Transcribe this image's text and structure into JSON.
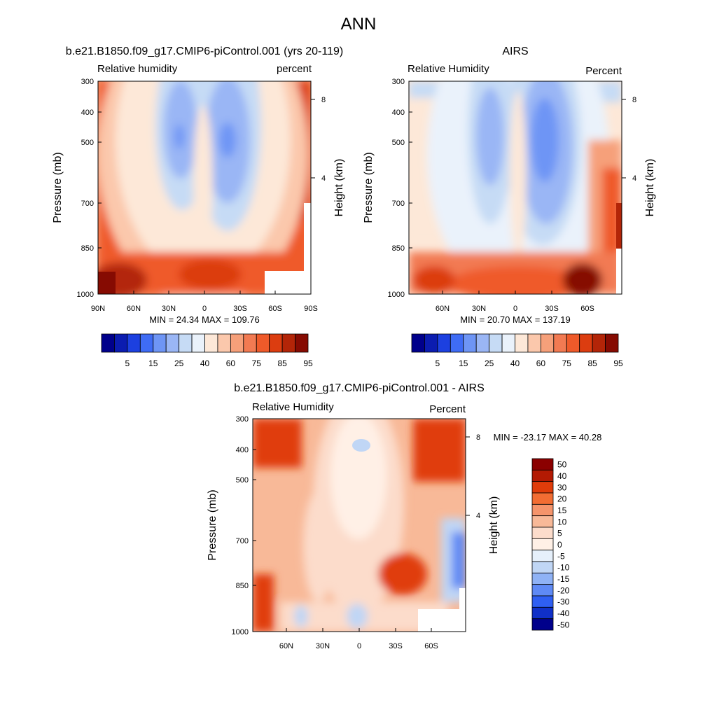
{
  "figure": {
    "main_title": "ANN"
  },
  "chart_data": [
    {
      "type": "heatmap",
      "panel": "model",
      "title": "b.e21.B1850.f09_g17.CMIP6-piControl.001 (yrs 20-119)",
      "left_label": "Relative humidity",
      "right_label": "percent",
      "ylabel": "Pressure (mb)",
      "ylabel_right": "Height (km)",
      "y_ticks": [
        "300",
        "400",
        "500",
        "700",
        "850",
        "1000"
      ],
      "y_right_ticks": [
        "8",
        "4"
      ],
      "x_ticks": [
        "90N",
        "60N",
        "30N",
        "0",
        "30S",
        "60S",
        "90S"
      ],
      "stats_text": "MIN =  24.34  MAX = 109.76",
      "min": 24.34,
      "max": 109.76,
      "colorbar_labels": [
        "5",
        "15",
        "25",
        "40",
        "60",
        "75",
        "85",
        "95"
      ]
    },
    {
      "type": "heatmap",
      "panel": "obs",
      "title": "AIRS",
      "left_label": "Relative Humidity",
      "right_label": "Percent",
      "ylabel": "Pressure (mb)",
      "ylabel_right": "Height (km)",
      "y_ticks": [
        "300",
        "400",
        "500",
        "700",
        "850",
        "1000"
      ],
      "y_right_ticks": [
        "8",
        "4"
      ],
      "x_ticks": [
        "60N",
        "30N",
        "0",
        "30S",
        "60S"
      ],
      "stats_text": "MIN =  20.70  MAX = 137.19",
      "min": 20.7,
      "max": 137.19,
      "colorbar_labels": [
        "5",
        "15",
        "25",
        "40",
        "60",
        "75",
        "85",
        "95"
      ]
    },
    {
      "type": "heatmap",
      "panel": "diff",
      "title": "b.e21.B1850.f09_g17.CMIP6-piControl.001 - AIRS",
      "left_label": "Relative Humidity",
      "right_label": "Percent",
      "ylabel": "Pressure (mb)",
      "ylabel_right": "Height (km)",
      "y_ticks": [
        "300",
        "400",
        "500",
        "700",
        "850",
        "1000"
      ],
      "y_right_ticks": [
        "8",
        "4"
      ],
      "x_ticks": [
        "60N",
        "30N",
        "0",
        "30S",
        "60S"
      ],
      "stats_text": "MIN = -23.17  MAX =  40.28",
      "min": -23.17,
      "max": 40.28,
      "colorbar_labels": [
        "50",
        "40",
        "30",
        "20",
        "15",
        "10",
        "5",
        "0",
        "-5",
        "-10",
        "-15",
        "-20",
        "-30",
        "-40",
        "-50"
      ]
    }
  ],
  "palettes": {
    "absolute": [
      "#00008b",
      "#0b1cb0",
      "#1c40e0",
      "#3f6cf5",
      "#6e95f5",
      "#9ab6f5",
      "#c6dbf5",
      "#eaf2fb",
      "#fde8d8",
      "#fbc8ac",
      "#f6a07a",
      "#f27a52",
      "#ef5a2a",
      "#dc3d10",
      "#b32508",
      "#860b02"
    ],
    "difference": [
      "#8b0000",
      "#b31a03",
      "#e03c0a",
      "#f26d33",
      "#f5946b",
      "#f8b998",
      "#fcdccb",
      "#fff0e6",
      "#e6f0fb",
      "#c0d6f5",
      "#8fb2f5",
      "#5f8af5",
      "#2f5ff2",
      "#1030c8",
      "#00008b"
    ]
  }
}
